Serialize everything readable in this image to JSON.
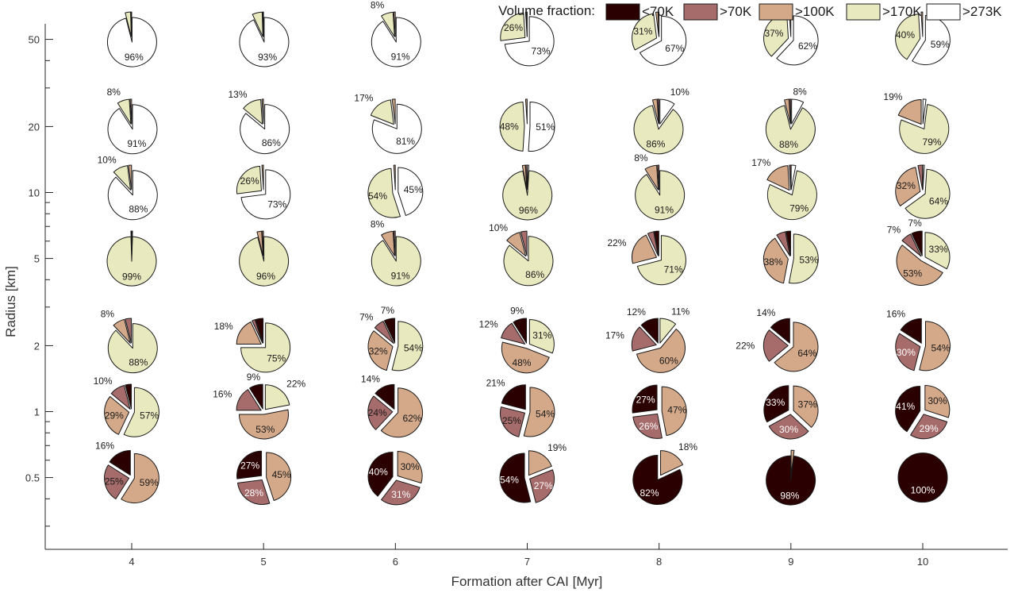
{
  "chart_data": {
    "type": "pie-grid",
    "title": "",
    "xlabel": "Formation after CAI [Myr]",
    "ylabel": "Radius [km]",
    "x_ticks": [
      "4",
      "5",
      "6",
      "7",
      "8",
      "9",
      "10"
    ],
    "y_ticks": [
      "50",
      "20",
      "10",
      "5",
      "2",
      "1",
      "0.5"
    ],
    "y_scale": "log",
    "ylim": [
      0.3,
      70
    ],
    "legend": {
      "title": "Volume fraction:",
      "placement": "top-right",
      "entries": [
        {
          "label": "<70K",
          "color": "#2b0000"
        },
        {
          "label": ">70K",
          "color": "#a66b6b"
        },
        {
          "label": ">100K",
          "color": "#d4a98a"
        },
        {
          "label": ">170K",
          "color": "#e9e9bf"
        },
        {
          "label": ">273K",
          "color": "#ffffff"
        }
      ]
    },
    "pies": [
      {
        "radius": "50",
        "time": "4",
        "fractions": [
          0,
          0,
          0.5,
          3.5,
          96
        ],
        "labels": [
          "",
          "",
          "",
          "",
          "96%"
        ]
      },
      {
        "radius": "50",
        "time": "5",
        "fractions": [
          0,
          0,
          0.5,
          6.5,
          93
        ],
        "labels": [
          "",
          "",
          "",
          "",
          "93%"
        ]
      },
      {
        "radius": "50",
        "time": "6",
        "fractions": [
          0,
          0,
          1,
          8,
          91
        ],
        "labels": [
          "",
          "",
          "",
          "8%",
          "91%"
        ]
      },
      {
        "radius": "50",
        "time": "7",
        "fractions": [
          0,
          0.5,
          0.5,
          26,
          73
        ],
        "labels": [
          "",
          "",
          "",
          "26%",
          "73%"
        ]
      },
      {
        "radius": "50",
        "time": "8",
        "fractions": [
          0,
          0.5,
          1.5,
          31,
          67
        ],
        "labels": [
          "",
          "",
          "",
          "31%",
          "67%"
        ]
      },
      {
        "radius": "50",
        "time": "9",
        "fractions": [
          0,
          0,
          1,
          37,
          62
        ],
        "labels": [
          "",
          "",
          "",
          "37%",
          "62%"
        ]
      },
      {
        "radius": "50",
        "time": "10",
        "fractions": [
          0,
          0,
          1,
          40,
          59
        ],
        "labels": [
          "",
          "",
          "",
          "40%",
          "59%"
        ]
      },
      {
        "radius": "20",
        "time": "4",
        "fractions": [
          0,
          0,
          1,
          8,
          91
        ],
        "labels": [
          "",
          "",
          "",
          "8%",
          "91%"
        ]
      },
      {
        "radius": "20",
        "time": "5",
        "fractions": [
          0,
          0,
          1,
          13,
          86
        ],
        "labels": [
          "",
          "",
          "",
          "13%",
          "86%"
        ]
      },
      {
        "radius": "20",
        "time": "6",
        "fractions": [
          0,
          0,
          2,
          17,
          81
        ],
        "labels": [
          "",
          "",
          "",
          "17%",
          "81%"
        ]
      },
      {
        "radius": "20",
        "time": "7",
        "fractions": [
          0,
          0,
          1,
          48,
          51
        ],
        "labels": [
          "",
          "",
          "",
          "48%",
          "51%"
        ]
      },
      {
        "radius": "20",
        "time": "8",
        "fractions": [
          0,
          1,
          3,
          86,
          10
        ],
        "labels": [
          "",
          "",
          "",
          "86%",
          "10%"
        ]
      },
      {
        "radius": "20",
        "time": "9",
        "fractions": [
          0,
          1,
          3,
          88,
          8
        ],
        "labels": [
          "",
          "",
          "",
          "88%",
          "8%"
        ]
      },
      {
        "radius": "20",
        "time": "10",
        "fractions": [
          0,
          0,
          19,
          79,
          2
        ],
        "labels": [
          "",
          "",
          "19%",
          "79%",
          ""
        ]
      },
      {
        "radius": "10",
        "time": "4",
        "fractions": [
          0,
          0,
          2,
          10,
          88
        ],
        "labels": [
          "",
          "",
          "",
          "10%",
          "88%"
        ]
      },
      {
        "radius": "10",
        "time": "5",
        "fractions": [
          0,
          0,
          1,
          26,
          73
        ],
        "labels": [
          "",
          "",
          "",
          "26%",
          "73%"
        ]
      },
      {
        "radius": "10",
        "time": "6",
        "fractions": [
          0,
          0,
          1,
          54,
          45
        ],
        "labels": [
          "",
          "",
          "",
          "54%",
          "45%"
        ]
      },
      {
        "radius": "10",
        "time": "7",
        "fractions": [
          0,
          1,
          2,
          96,
          1
        ],
        "labels": [
          "",
          "",
          "",
          "96%",
          ""
        ]
      },
      {
        "radius": "10",
        "time": "8",
        "fractions": [
          0,
          1,
          8,
          91,
          0
        ],
        "labels": [
          "",
          "",
          "8%",
          "91%",
          ""
        ]
      },
      {
        "radius": "10",
        "time": "9",
        "fractions": [
          0,
          1,
          17,
          79,
          3
        ],
        "labels": [
          "",
          "",
          "17%",
          "79%",
          ""
        ]
      },
      {
        "radius": "10",
        "time": "10",
        "fractions": [
          0,
          3,
          32,
          64,
          1
        ],
        "labels": [
          "",
          "",
          "32%",
          "64%",
          ""
        ]
      },
      {
        "radius": "5",
        "time": "4",
        "fractions": [
          0,
          0,
          0.5,
          99,
          0.5
        ],
        "labels": [
          "",
          "",
          "",
          "99%",
          ""
        ]
      },
      {
        "radius": "5",
        "time": "5",
        "fractions": [
          0,
          1,
          3,
          96,
          0
        ],
        "labels": [
          "",
          "",
          "",
          "96%",
          ""
        ]
      },
      {
        "radius": "5",
        "time": "6",
        "fractions": [
          0,
          1,
          8,
          91,
          0
        ],
        "labels": [
          "",
          "",
          "8%",
          "91%",
          ""
        ]
      },
      {
        "radius": "5",
        "time": "7",
        "fractions": [
          0,
          4,
          10,
          86,
          0
        ],
        "labels": [
          "",
          "",
          "10%",
          "86%",
          ""
        ]
      },
      {
        "radius": "5",
        "time": "8",
        "fractions": [
          3,
          4,
          22,
          71,
          0
        ],
        "labels": [
          "",
          "",
          "22%",
          "71%",
          ""
        ]
      },
      {
        "radius": "5",
        "time": "9",
        "fractions": [
          3,
          6,
          38,
          53,
          0
        ],
        "labels": [
          "",
          "",
          "38%",
          "53%",
          ""
        ]
      },
      {
        "radius": "5",
        "time": "10",
        "fractions": [
          7,
          7,
          53,
          33,
          0
        ],
        "labels": [
          "7%",
          "7%",
          "53%",
          "33%",
          ""
        ]
      },
      {
        "radius": "2",
        "time": "4",
        "fractions": [
          0,
          4,
          8,
          88,
          0
        ],
        "labels": [
          "",
          "",
          "8%",
          "88%",
          ""
        ]
      },
      {
        "radius": "2",
        "time": "5",
        "fractions": [
          5,
          2,
          18,
          75,
          0
        ],
        "labels": [
          "",
          "",
          "18%",
          "75%",
          ""
        ]
      },
      {
        "radius": "2",
        "time": "6",
        "fractions": [
          7,
          7,
          32,
          54,
          0
        ],
        "labels": [
          "7%",
          "7%",
          "32%",
          "54%",
          ""
        ]
      },
      {
        "radius": "2",
        "time": "7",
        "fractions": [
          9,
          12,
          48,
          31,
          0
        ],
        "labels": [
          "9%",
          "12%",
          "48%",
          "31%",
          ""
        ]
      },
      {
        "radius": "2",
        "time": "8",
        "fractions": [
          12,
          17,
          60,
          11,
          0
        ],
        "labels": [
          "12%",
          "17%",
          "60%",
          "11%",
          ""
        ]
      },
      {
        "radius": "2",
        "time": "9",
        "fractions": [
          14,
          22,
          64,
          0,
          0
        ],
        "labels": [
          "14%",
          "22%",
          "64%",
          "",
          ""
        ]
      },
      {
        "radius": "2",
        "time": "10",
        "fractions": [
          16,
          30,
          54,
          0,
          0
        ],
        "labels": [
          "16%",
          "30%",
          "54%",
          "",
          ""
        ]
      },
      {
        "radius": "1",
        "time": "4",
        "fractions": [
          4,
          10,
          29,
          57,
          0
        ],
        "labels": [
          "",
          "10%",
          "29%",
          "57%",
          ""
        ]
      },
      {
        "radius": "1",
        "time": "5",
        "fractions": [
          9,
          16,
          53,
          22,
          0
        ],
        "labels": [
          "9%",
          "16%",
          "53%",
          "22%",
          ""
        ]
      },
      {
        "radius": "1",
        "time": "6",
        "fractions": [
          14,
          24,
          62,
          0,
          0
        ],
        "labels": [
          "14%",
          "24%",
          "62%",
          "",
          ""
        ]
      },
      {
        "radius": "1",
        "time": "7",
        "fractions": [
          21,
          25,
          54,
          0,
          0
        ],
        "labels": [
          "21%",
          "25%",
          "54%",
          "",
          ""
        ]
      },
      {
        "radius": "1",
        "time": "8",
        "fractions": [
          27,
          26,
          47,
          0,
          0
        ],
        "labels": [
          "27%",
          "26%",
          "47%",
          "",
          ""
        ]
      },
      {
        "radius": "1",
        "time": "9",
        "fractions": [
          33,
          30,
          37,
          0,
          0
        ],
        "labels": [
          "33%",
          "30%",
          "37%",
          "",
          ""
        ]
      },
      {
        "radius": "1",
        "time": "10",
        "fractions": [
          41,
          29,
          30,
          0,
          0
        ],
        "labels": [
          "41%",
          "29%",
          "30%",
          "",
          ""
        ]
      },
      {
        "radius": "0.5",
        "time": "4",
        "fractions": [
          16,
          25,
          59,
          0,
          0
        ],
        "labels": [
          "16%",
          "25%",
          "59%",
          "",
          ""
        ]
      },
      {
        "radius": "0.5",
        "time": "5",
        "fractions": [
          27,
          28,
          45,
          0,
          0
        ],
        "labels": [
          "27%",
          "28%",
          "45%",
          "",
          ""
        ]
      },
      {
        "radius": "0.5",
        "time": "6",
        "fractions": [
          40,
          31,
          30,
          0,
          0
        ],
        "labels": [
          "40%",
          "31%",
          "30%",
          "",
          ""
        ]
      },
      {
        "radius": "0.5",
        "time": "7",
        "fractions": [
          54,
          27,
          19,
          0,
          0
        ],
        "labels": [
          "54%",
          "27%",
          "19%",
          "",
          ""
        ]
      },
      {
        "radius": "0.5",
        "time": "8",
        "fractions": [
          82,
          0,
          18,
          0,
          0
        ],
        "labels": [
          "82%",
          "",
          "18%",
          "",
          ""
        ]
      },
      {
        "radius": "0.5",
        "time": "9",
        "fractions": [
          98,
          0,
          2,
          0,
          0
        ],
        "labels": [
          "98%",
          "",
          "",
          "",
          ""
        ]
      },
      {
        "radius": "0.5",
        "time": "10",
        "fractions": [
          100,
          0,
          0,
          0,
          0
        ],
        "labels": [
          "100%",
          "",
          "",
          "",
          ""
        ]
      }
    ]
  }
}
